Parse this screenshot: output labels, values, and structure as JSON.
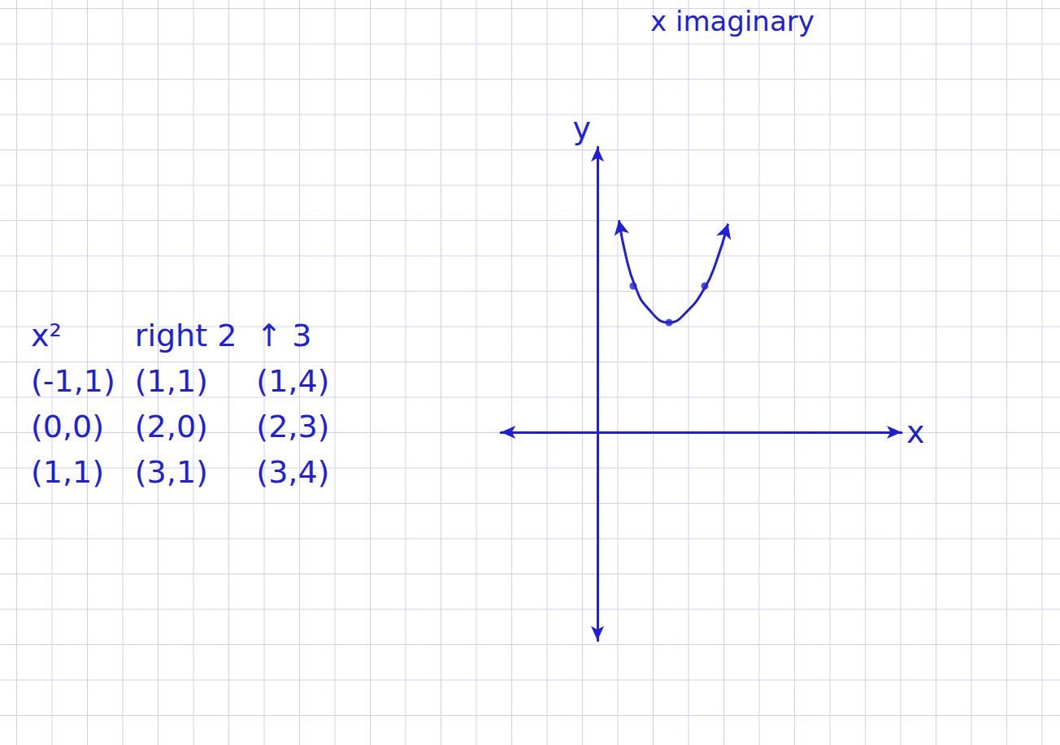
{
  "header": {
    "text": "x imaginary"
  },
  "table": {
    "columns": [
      "x²",
      "right 2",
      "↑ 3"
    ],
    "rows": [
      [
        "(-1,1)",
        "(1,1)",
        "(1,4)"
      ],
      [
        "(0,0)",
        "(2,0)",
        "(2,3)"
      ],
      [
        "(1,1)",
        "(3,1)",
        "(3,4)"
      ]
    ]
  },
  "chart_data": {
    "type": "line",
    "x_label": "x",
    "y_label": "y",
    "xlim": [
      -2.7,
      8.5
    ],
    "ylim": [
      -5.7,
      7.8
    ],
    "tick_labels": false,
    "grid": false,
    "series": [
      {
        "type": "line",
        "color": "#1f1fd8",
        "line_style": "solid",
        "marker": "arrow",
        "x": [
          0.6,
          0.8,
          1.05,
          1.4,
          2,
          2.5,
          3,
          3.3,
          3.65
        ],
        "values": [
          5.8,
          4.8,
          4,
          3.4,
          3,
          3.3,
          3.95,
          4.6,
          5.7
        ]
      },
      {
        "type": "scatter",
        "color": "#1f1fd8",
        "marker": "circle",
        "x": [
          1,
          2,
          3
        ],
        "values": [
          4,
          3,
          4
        ]
      }
    ]
  }
}
